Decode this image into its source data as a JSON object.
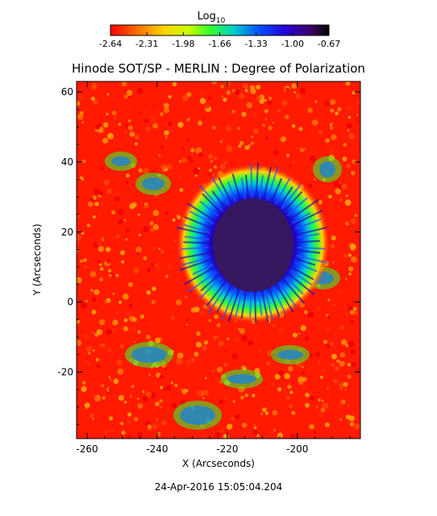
{
  "colorbar": {
    "label": "Log",
    "label_sub": "10",
    "ticks": [
      "-2.64",
      "-2.31",
      "-1.98",
      "-1.66",
      "-1.33",
      "-1.00",
      "-0.67"
    ],
    "range": [
      -2.64,
      -0.67
    ],
    "colormap": [
      "#ff0000",
      "#ff6a00",
      "#ffd200",
      "#c8ff00",
      "#32ff32",
      "#00d2c8",
      "#0050ff",
      "#2800dc",
      "#3c0064",
      "#000000"
    ]
  },
  "chart_data": {
    "type": "heatmap",
    "title": "Hinode SOT/SP - MERLIN : Degree of Polarization",
    "xlabel": "X (Arcseconds)",
    "ylabel": "Y (Arcseconds)",
    "xlim": [
      -263,
      -182
    ],
    "ylim": [
      -39,
      63
    ],
    "xticks": [
      -260,
      -240,
      -220,
      -200
    ],
    "yticks": [
      -20,
      0,
      20,
      40,
      60
    ],
    "xtick_labels": [
      "-260",
      "-240",
      "-220",
      "-200"
    ],
    "ytick_labels": [
      "-20",
      "0",
      "20",
      "40",
      "60"
    ],
    "grid": false,
    "features": {
      "sunspot_umbra_center": [
        -213,
        15
      ],
      "umbra_value_log10": -0.8,
      "background_value_log10": -2.5
    }
  },
  "timestamp": "24-Apr-2016 15:05:04.204"
}
